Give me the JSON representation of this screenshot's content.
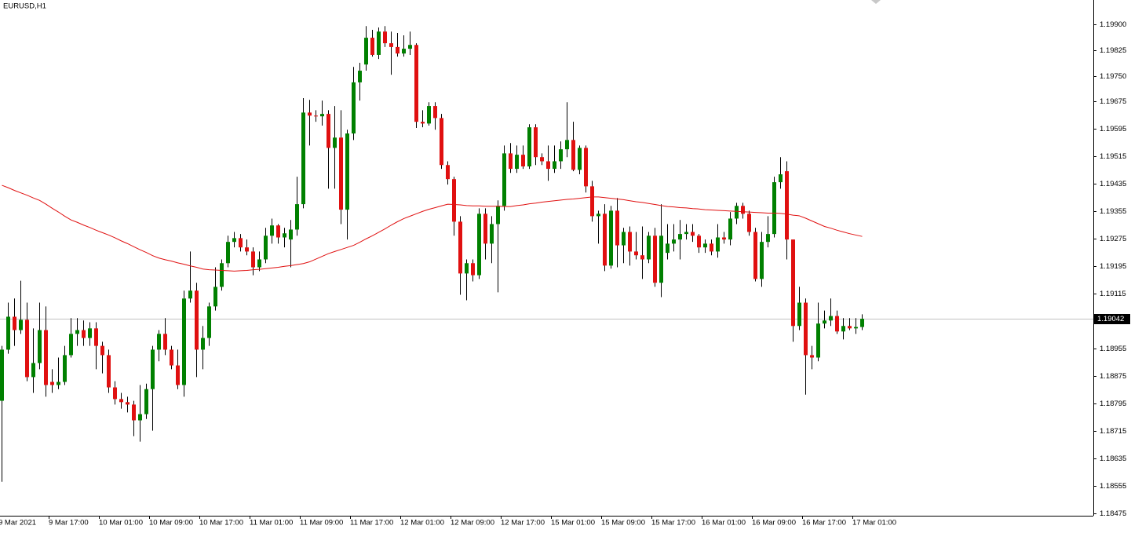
{
  "chart_data": {
    "type": "candlestick",
    "title": "EURUSD,H1",
    "categories": [
      "9 Mar 2021",
      null,
      null,
      null,
      null,
      null,
      null,
      null,
      "9 Mar 17:00",
      null,
      null,
      null,
      null,
      null,
      null,
      null,
      "10 Mar 01:00",
      null,
      null,
      null,
      null,
      null,
      null,
      null,
      "10 Mar 09:00",
      null,
      null,
      null,
      null,
      null,
      null,
      null,
      "10 Mar 17:00",
      null,
      null,
      null,
      null,
      null,
      null,
      null,
      "11 Mar 01:00",
      null,
      null,
      null,
      null,
      null,
      null,
      null,
      "11 Mar 09:00",
      null,
      null,
      null,
      null,
      null,
      null,
      null,
      "11 Mar 17:00",
      null,
      null,
      null,
      null,
      null,
      null,
      null,
      "12 Mar 01:00",
      null,
      null,
      null,
      null,
      null,
      null,
      null,
      "12 Mar 09:00",
      null,
      null,
      null,
      null,
      null,
      null,
      null,
      "12 Mar 17:00",
      null,
      null,
      null,
      null,
      null,
      null,
      null,
      "15 Mar 01:00",
      null,
      null,
      null,
      null,
      null,
      null,
      null,
      "15 Mar 09:00",
      null,
      null,
      null,
      null,
      null,
      null,
      null,
      "15 Mar 17:00",
      null,
      null,
      null,
      null,
      null,
      null,
      null,
      "16 Mar 01:00",
      null,
      null,
      null,
      null,
      null,
      null,
      null,
      "16 Mar 09:00",
      null,
      null,
      null,
      null,
      null,
      null,
      null,
      "16 Mar 17:00",
      null,
      null,
      null,
      null,
      null,
      null,
      null,
      "17 Mar 01:00",
      null
    ],
    "open": [
      1.18803,
      1.18952,
      1.19048,
      1.19009,
      1.19039,
      1.18872,
      1.18913,
      1.19009,
      1.18858,
      1.18849,
      1.18858,
      1.18936,
      1.18998,
      1.19009,
      1.18986,
      1.19014,
      1.18963,
      1.18936,
      1.18842,
      1.18808,
      1.18799,
      1.18792,
      1.18746,
      1.18764,
      1.18837,
      1.18952,
      1.18998,
      1.18952,
      1.18906,
      1.18849,
      1.19101,
      1.19124,
      1.18952,
      1.18986,
      1.19078,
      1.19135,
      1.19204,
      1.19266,
      1.19277,
      1.1925,
      1.19238,
      1.19192,
      1.19215,
      1.19284,
      1.19314,
      1.19279,
      1.19273,
      1.19302,
      1.19376,
      1.19643,
      1.19634,
      1.19632,
      1.19639,
      1.1954,
      1.1957,
      1.1936,
      1.19582,
      1.19731,
      1.19783,
      1.19861,
      1.19811,
      1.19879,
      1.19845,
      1.19834,
      1.19815,
      1.19829,
      1.1984,
      1.19616,
      1.19611,
      1.19662,
      1.19627,
      1.1949,
      1.19449,
      1.19325,
      1.19174,
      1.19204,
      1.19169,
      1.19348,
      1.19261,
      1.19318,
      1.19371,
      1.19524,
      1.19479,
      1.1952,
      1.19486,
      1.196,
      1.19513,
      1.19501,
      1.19479,
      1.19501,
      1.19536,
      1.19563,
      1.19476,
      1.1954,
      1.19428,
      1.19341,
      1.19348,
      1.19197,
      1.19357,
      1.19256,
      1.19295,
      1.19238,
      1.19227,
      1.19215,
      1.19284,
      1.19147,
      1.19234,
      1.19261,
      1.19273,
      1.19289,
      1.19295,
      1.19284,
      1.1925,
      1.19261,
      1.19238,
      1.19279,
      1.19273,
      1.19334,
      1.19371,
      1.19348,
      1.19295,
      1.19158,
      1.19266,
      1.19289,
      1.1944,
      1.19472,
      1.19273,
      1.19021,
      1.19089,
      1.18936,
      1.18929,
      1.19028,
      1.19037,
      1.1905,
      1.19005,
      1.19021,
      1.19014,
      1.19018
    ],
    "high": [
      1.18963,
      1.19089,
      1.19101,
      1.19153,
      1.19089,
      1.19014,
      1.19089,
      1.19078,
      1.18895,
      1.18929,
      1.18963,
      1.19044,
      1.19044,
      1.19037,
      1.19032,
      1.19032,
      1.18975,
      1.18952,
      1.1886,
      1.18826,
      1.18815,
      1.18803,
      1.18849,
      1.18853,
      1.18963,
      1.19009,
      1.19044,
      1.18963,
      1.18952,
      1.19124,
      1.19238,
      1.19147,
      1.19021,
      1.19089,
      1.19192,
      1.19215,
      1.19284,
      1.19295,
      1.19289,
      1.19273,
      1.1925,
      1.19238,
      1.19307,
      1.19334,
      1.19318,
      1.19307,
      1.1933,
      1.19456,
      1.19685,
      1.1968,
      1.1965,
      1.19678,
      1.1965,
      1.19662,
      1.1965,
      1.19593,
      1.19776,
      1.19788,
      1.19895,
      1.19884,
      1.19891,
      1.19895,
      1.19879,
      1.19875,
      1.19868,
      1.19879,
      1.19845,
      1.1965,
      1.19673,
      1.19673,
      1.19639,
      1.19501,
      1.19456,
      1.19341,
      1.19215,
      1.19215,
      1.19364,
      1.19364,
      1.19341,
      1.19387,
      1.19547,
      1.19554,
      1.19547,
      1.19547,
      1.19609,
      1.19609,
      1.19524,
      1.19547,
      1.19547,
      1.19559,
      1.19673,
      1.19616,
      1.19547,
      1.19547,
      1.19444,
      1.19357,
      1.19376,
      1.19371,
      1.19394,
      1.19307,
      1.19311,
      1.19295,
      1.19311,
      1.19295,
      1.19307,
      1.19376,
      1.19318,
      1.19318,
      1.1933,
      1.19318,
      1.19318,
      1.19289,
      1.19273,
      1.19273,
      1.19318,
      1.19295,
      1.19353,
      1.1938,
      1.1938,
      1.19357,
      1.19307,
      1.19295,
      1.19341,
      1.19456,
      1.19513,
      1.19501,
      1.19273,
      1.19135,
      1.19101,
      1.18963,
      1.19089,
      1.19066,
      1.19101,
      1.19066,
      1.19044,
      1.19044,
      1.19044,
      1.19055
    ],
    "low": [
      1.18567,
      1.1894,
      1.18963,
      1.18998,
      1.1886,
      1.18826,
      1.18895,
      1.18815,
      1.18826,
      1.18837,
      1.18849,
      1.18929,
      1.18963,
      1.18963,
      1.18963,
      1.18895,
      1.18883,
      1.18826,
      1.18792,
      1.1878,
      1.18769,
      1.187,
      1.18684,
      1.1875,
      1.18716,
      1.18918,
      1.18936,
      1.18895,
      1.18837,
      1.18815,
      1.19089,
      1.18872,
      1.18895,
      1.18963,
      1.19066,
      1.19124,
      1.19192,
      1.1925,
      1.19238,
      1.19227,
      1.19169,
      1.19181,
      1.19204,
      1.19261,
      1.19261,
      1.1925,
      1.19192,
      1.19284,
      1.19364,
      1.19547,
      1.19616,
      1.19605,
      1.19421,
      1.19421,
      1.19318,
      1.19273,
      1.19563,
      1.19678,
      1.19765,
      1.19806,
      1.19799,
      1.19834,
      1.19753,
      1.19806,
      1.19806,
      1.19811,
      1.19598,
      1.196,
      1.19605,
      1.19593,
      1.19479,
      1.19433,
      1.19284,
      1.19112,
      1.19096,
      1.19151,
      1.19158,
      1.19215,
      1.19204,
      1.19119,
      1.19357,
      1.19467,
      1.19467,
      1.19479,
      1.19479,
      1.1949,
      1.1949,
      1.19444,
      1.19467,
      1.19479,
      1.19513,
      1.19472,
      1.19463,
      1.1941,
      1.19325,
      1.19261,
      1.19181,
      1.19188,
      1.19192,
      1.19204,
      1.19197,
      1.19215,
      1.19158,
      1.19204,
      1.19135,
      1.19105,
      1.19215,
      1.19238,
      1.19215,
      1.19273,
      1.19266,
      1.19234,
      1.19234,
      1.19227,
      1.1922,
      1.19261,
      1.19256,
      1.19318,
      1.19334,
      1.19284,
      1.19151,
      1.19135,
      1.1925,
      1.19279,
      1.19421,
      1.19215,
      1.18975,
      1.19009,
      1.18821,
      1.18895,
      1.18918,
      1.19014,
      1.19021,
      1.18998,
      1.18982,
      1.19009,
      1.18998,
      1.19009
    ],
    "close": [
      1.18952,
      1.19048,
      1.19009,
      1.19039,
      1.18872,
      1.18913,
      1.19009,
      1.18849,
      1.18849,
      1.18858,
      1.18936,
      1.18998,
      1.19009,
      1.18986,
      1.19014,
      1.18963,
      1.18936,
      1.18842,
      1.18808,
      1.18799,
      1.18792,
      1.18746,
      1.18764,
      1.18837,
      1.18952,
      1.18998,
      1.18952,
      1.18906,
      1.18849,
      1.19101,
      1.19124,
      1.18952,
      1.18986,
      1.19078,
      1.19135,
      1.19204,
      1.19266,
      1.19277,
      1.1925,
      1.19238,
      1.19192,
      1.19215,
      1.19284,
      1.19314,
      1.19279,
      1.19291,
      1.19302,
      1.19376,
      1.19643,
      1.19634,
      1.19632,
      1.19639,
      1.1954,
      1.1957,
      1.1936,
      1.19582,
      1.19731,
      1.19765,
      1.19861,
      1.19811,
      1.19879,
      1.19845,
      1.19834,
      1.19815,
      1.19829,
      1.1984,
      1.19616,
      1.19611,
      1.19662,
      1.19627,
      1.1949,
      1.19449,
      1.19325,
      1.19174,
      1.19204,
      1.19169,
      1.19348,
      1.19261,
      1.19318,
      1.19371,
      1.19524,
      1.19479,
      1.1952,
      1.19486,
      1.196,
      1.19513,
      1.19501,
      1.19479,
      1.19501,
      1.19536,
      1.19563,
      1.19476,
      1.1954,
      1.19428,
      1.19341,
      1.19348,
      1.19197,
      1.19357,
      1.19256,
      1.19295,
      1.19238,
      1.19227,
      1.19215,
      1.19284,
      1.19147,
      1.19284,
      1.19261,
      1.19273,
      1.19289,
      1.19295,
      1.19284,
      1.1925,
      1.19261,
      1.19238,
      1.19279,
      1.19273,
      1.19334,
      1.19371,
      1.19348,
      1.19295,
      1.19158,
      1.19266,
      1.19289,
      1.1944,
      1.19463,
      1.19273,
      1.19021,
      1.19089,
      1.18936,
      1.18929,
      1.19028,
      1.19037,
      1.1905,
      1.19005,
      1.19021,
      1.19014,
      1.19018,
      1.19042
    ],
    "up_color": "#008000",
    "down_color": "#e01010",
    "overlay": {
      "color": "#e01010",
      "values": [
        1.19431,
        1.19424,
        1.19416,
        1.19409,
        1.19402,
        1.19394,
        1.19387,
        1.19376,
        1.19364,
        1.19353,
        1.19341,
        1.1933,
        1.19323,
        1.19315,
        1.19308,
        1.193,
        1.19293,
        1.19286,
        1.19278,
        1.19269,
        1.19261,
        1.19252,
        1.19243,
        1.19235,
        1.19226,
        1.19219,
        1.19214,
        1.1921,
        1.19205,
        1.19201,
        1.19196,
        1.19192,
        1.19187,
        1.19185,
        1.19184,
        1.19183,
        1.19182,
        1.19181,
        1.19182,
        1.19183,
        1.19185,
        1.19186,
        1.19188,
        1.1919,
        1.19192,
        1.19195,
        1.19197,
        1.192,
        1.19203,
        1.19208,
        1.19216,
        1.19224,
        1.19232,
        1.19238,
        1.19244,
        1.1925,
        1.19256,
        1.19265,
        1.19275,
        1.19284,
        1.19294,
        1.19304,
        1.19315,
        1.19325,
        1.19334,
        1.19341,
        1.19348,
        1.19355,
        1.19361,
        1.19366,
        1.19371,
        1.19376,
        1.19375,
        1.19374,
        1.19372,
        1.19371,
        1.19371,
        1.1937,
        1.1937,
        1.1937,
        1.19369,
        1.19369,
        1.19372,
        1.19374,
        1.19377,
        1.19379,
        1.19382,
        1.19384,
        1.19386,
        1.19388,
        1.1939,
        1.19391,
        1.19393,
        1.19395,
        1.19397,
        1.19397,
        1.19395,
        1.19393,
        1.19391,
        1.19389,
        1.19386,
        1.19383,
        1.19381,
        1.19378,
        1.19375,
        1.19372,
        1.19369,
        1.19368,
        1.19366,
        1.19365,
        1.19363,
        1.19362,
        1.1936,
        1.19359,
        1.19358,
        1.19357,
        1.19356,
        1.19355,
        1.19354,
        1.19353,
        1.19352,
        1.19351,
        1.1935,
        1.1935,
        1.19349,
        1.19347,
        1.19344,
        1.19342,
        1.19335,
        1.19327,
        1.19319,
        1.19311,
        1.19306,
        1.193,
        1.19295,
        1.1929,
        1.19286,
        1.19282
      ]
    },
    "current_price": 1.19042,
    "ylim": [
      1.18468,
      1.19971
    ],
    "yticks": [
      {
        "value": 1.199,
        "label": "1.19900"
      },
      1.19825,
      {
        "value": 1.1975,
        "label": "1.19750"
      },
      1.19675,
      1.19595,
      1.19515,
      1.19435,
      1.19355,
      1.19275,
      1.19195,
      1.19115,
      1.18955,
      1.18875,
      1.18795,
      1.18715,
      1.18635,
      1.18555,
      1.18475
    ]
  }
}
